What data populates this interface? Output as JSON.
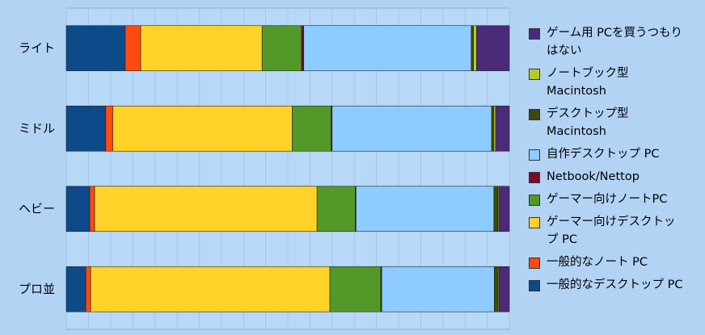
{
  "chart_data": {
    "type": "stacked_barh",
    "categories": [
      "ライト",
      "ミドル",
      "ヘビー",
      "プロ並"
    ],
    "series": [
      {
        "name": "一般的なデスクトップ PC",
        "color": "#0d4a8a",
        "values": [
          13.3,
          8.9,
          5.3,
          4.4
        ]
      },
      {
        "name": "一般的なノート PC",
        "color": "#ff4a10",
        "values": [
          3.5,
          1.6,
          1.1,
          1.1
        ]
      },
      {
        "name": "ゲーマー向けデスクトップ PC",
        "color": "#ffd22a",
        "values": [
          27.4,
          40.5,
          50.2,
          54.0
        ]
      },
      {
        "name": "ゲーマー向けノートPC",
        "color": "#52992a",
        "values": [
          8.9,
          8.8,
          8.6,
          11.5
        ]
      },
      {
        "name": "Netbook/Nettop",
        "color": "#7a0a2a",
        "values": [
          0.5,
          0.2,
          0.2,
          0.2
        ]
      },
      {
        "name": "自作デスクトップ PC",
        "color": "#8ecbff",
        "values": [
          37.8,
          36.0,
          31.1,
          25.4
        ]
      },
      {
        "name": "デスクトップ型Macintosh",
        "color": "#3a4a10",
        "values": [
          0.5,
          0.5,
          0.9,
          0.9
        ]
      },
      {
        "name": "ノートブック型Macintosh",
        "color": "#b3cc2a",
        "values": [
          0.7,
          0.4,
          0.2,
          0.2
        ]
      },
      {
        "name": "ゲーム用 PCを買うつもりはない",
        "color": "#4b2a7a",
        "values": [
          7.4,
          3.1,
          2.4,
          2.3
        ]
      }
    ],
    "xlim": [
      0,
      100
    ],
    "xticks": [
      0,
      5,
      10,
      15,
      20,
      25,
      30,
      35,
      40,
      45,
      50,
      55,
      60,
      65,
      70,
      75,
      80,
      85,
      90,
      95,
      100
    ],
    "grid": true
  }
}
